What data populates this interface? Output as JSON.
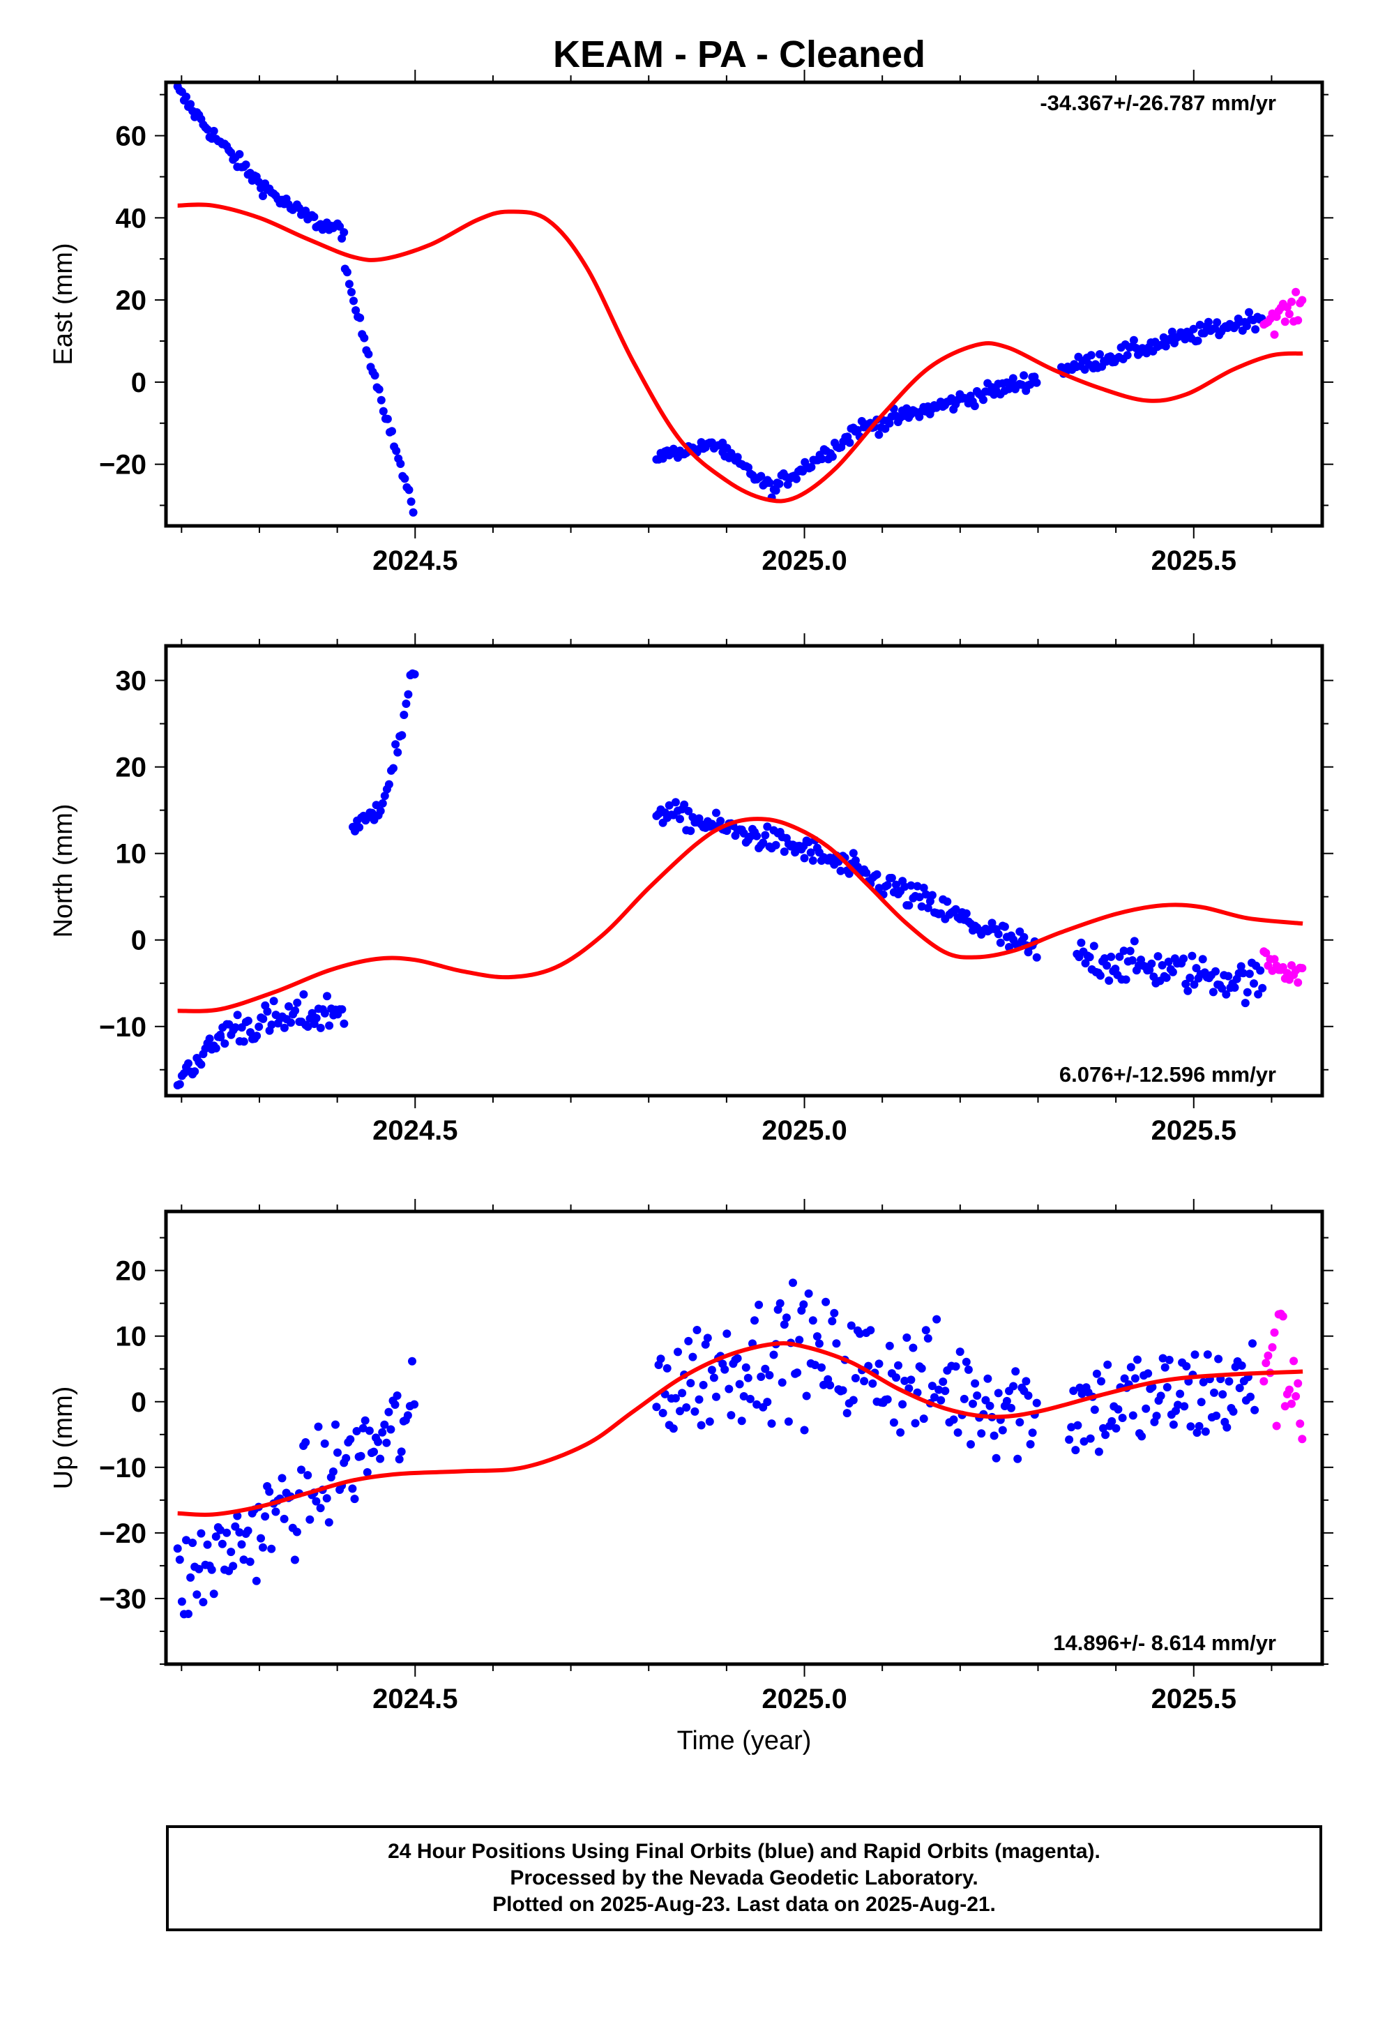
{
  "title": "KEAM  - PA - Cleaned",
  "footer": {
    "lines": [
      "24 Hour Positions Using Final Orbits (blue) and Rapid Orbits (magenta).",
      "Processed by the Nevada Geodetic Laboratory.",
      "Plotted on 2025-Aug-23. Last data on 2025-Aug-21."
    ]
  },
  "colors": {
    "final": "#0000ff",
    "rapid": "#ff00ff",
    "model": "#ff0000",
    "frame": "#000000"
  },
  "chart_data": [
    {
      "type": "scatter",
      "name": "east",
      "ylabel": "East (mm)",
      "xlabel": "",
      "rate_text": "-34.367+/-26.787 mm/yr",
      "rate_position": "top-right",
      "xlim": [
        2024.18,
        2025.665
      ],
      "ylim": [
        -35,
        73
      ],
      "xticks": [
        2024.5,
        2025.0,
        2025.5
      ],
      "xticklabels": [
        "2024.5",
        "2025.0",
        "2025.5"
      ],
      "yticks": [
        -20,
        0,
        20,
        40,
        60
      ],
      "yticklabels": [
        "−20",
        "0",
        "20",
        "40",
        "60"
      ],
      "grid": false,
      "series": [
        {
          "role": "final",
          "segments": [
            {
              "x0": 2024.195,
              "x1": 2024.41,
              "y0": 71,
              "y1": 37,
              "shape": "decay",
              "noise": 1.4
            },
            {
              "x0": 2024.41,
              "x1": 2024.5,
              "y0": 27,
              "y1": -33,
              "shape": "linear",
              "noise": 1.0
            },
            {
              "x0": 2024.81,
              "x1": 2024.895,
              "y0": -18,
              "y1": -15,
              "shape": "linear",
              "noise": 1.0
            },
            {
              "x0": 2024.895,
              "x1": 2024.965,
              "y0": -17,
              "y1": -27,
              "shape": "linear",
              "noise": 1.2
            },
            {
              "x0": 2024.965,
              "x1": 2025.06,
              "y0": -25,
              "y1": -13,
              "shape": "linear",
              "noise": 1.4
            },
            {
              "x0": 2025.06,
              "x1": 2025.3,
              "y0": -12,
              "y1": 1,
              "shape": "linear",
              "noise": 1.5
            },
            {
              "x0": 2025.33,
              "x1": 2025.59,
              "y0": 3,
              "y1": 16,
              "shape": "linear",
              "noise": 1.5
            }
          ]
        },
        {
          "role": "rapid",
          "segments": [
            {
              "x0": 2025.59,
              "x1": 2025.64,
              "y0": 15,
              "y1": 18,
              "shape": "linear",
              "noise": 2.5
            }
          ]
        },
        {
          "role": "model",
          "points": [
            [
              2024.195,
              43
            ],
            [
              2024.24,
              43
            ],
            [
              2024.3,
              40
            ],
            [
              2024.36,
              35
            ],
            [
              2024.42,
              30.5
            ],
            [
              2024.46,
              30
            ],
            [
              2024.52,
              33.5
            ],
            [
              2024.58,
              39.5
            ],
            [
              2024.62,
              41.5
            ],
            [
              2024.67,
              39.5
            ],
            [
              2024.72,
              28
            ],
            [
              2024.78,
              5
            ],
            [
              2024.84,
              -14
            ],
            [
              2024.9,
              -24
            ],
            [
              2024.95,
              -28.5
            ],
            [
              2024.99,
              -28
            ],
            [
              2025.04,
              -21
            ],
            [
              2025.1,
              -8
            ],
            [
              2025.16,
              3.5
            ],
            [
              2025.22,
              9
            ],
            [
              2025.26,
              8.5
            ],
            [
              2025.32,
              3
            ],
            [
              2025.38,
              -1.5
            ],
            [
              2025.44,
              -4.5
            ],
            [
              2025.49,
              -3
            ],
            [
              2025.55,
              3
            ],
            [
              2025.6,
              6.5
            ],
            [
              2025.64,
              7
            ]
          ]
        }
      ]
    },
    {
      "type": "scatter",
      "name": "north",
      "ylabel": "North (mm)",
      "xlabel": "",
      "rate_text": "6.076+/-12.596 mm/yr",
      "rate_position": "bottom-right",
      "xlim": [
        2024.18,
        2025.665
      ],
      "ylim": [
        -18,
        34
      ],
      "xticks": [
        2024.5,
        2025.0,
        2025.5
      ],
      "xticklabels": [
        "2024.5",
        "2025.0",
        "2025.5"
      ],
      "yticks": [
        -10,
        0,
        10,
        20,
        30
      ],
      "yticklabels": [
        "−10",
        "0",
        "10",
        "20",
        "30"
      ],
      "grid": false,
      "series": [
        {
          "role": "final",
          "segments": [
            {
              "x0": 2024.195,
              "x1": 2024.25,
              "y0": -16,
              "y1": -11.5,
              "shape": "linear",
              "noise": 1.0
            },
            {
              "x0": 2024.25,
              "x1": 2024.41,
              "y0": -10.5,
              "y1": -8,
              "shape": "linear",
              "noise": 1.6
            },
            {
              "x0": 2024.42,
              "x1": 2024.5,
              "y0": 13,
              "y1": 32,
              "shape": "growth",
              "noise": 1.2
            },
            {
              "x0": 2024.81,
              "x1": 2025.0,
              "y0": 15,
              "y1": 10.5,
              "shape": "linear",
              "noise": 1.0
            },
            {
              "x0": 2025.0,
              "x1": 2025.3,
              "y0": 10.5,
              "y1": -1.5,
              "shape": "linear",
              "noise": 1.2
            },
            {
              "x0": 2025.35,
              "x1": 2025.59,
              "y0": -2,
              "y1": -5,
              "shape": "linear",
              "noise": 1.6
            }
          ]
        },
        {
          "role": "rapid",
          "segments": [
            {
              "x0": 2025.59,
              "x1": 2025.64,
              "y0": -2,
              "y1": -4,
              "shape": "linear",
              "noise": 1.3
            }
          ]
        },
        {
          "role": "model",
          "points": [
            [
              2024.195,
              -8.2
            ],
            [
              2024.25,
              -8
            ],
            [
              2024.32,
              -6
            ],
            [
              2024.39,
              -3.5
            ],
            [
              2024.45,
              -2.2
            ],
            [
              2024.5,
              -2.3
            ],
            [
              2024.56,
              -3.6
            ],
            [
              2024.62,
              -4.3
            ],
            [
              2024.68,
              -3.2
            ],
            [
              2024.74,
              0.5
            ],
            [
              2024.8,
              6
            ],
            [
              2024.86,
              11
            ],
            [
              2024.9,
              13.3
            ],
            [
              2024.94,
              14
            ],
            [
              2024.98,
              13.3
            ],
            [
              2025.03,
              10.8
            ],
            [
              2025.08,
              6.5
            ],
            [
              2025.13,
              2
            ],
            [
              2025.18,
              -1.4
            ],
            [
              2025.22,
              -2
            ],
            [
              2025.27,
              -1.2
            ],
            [
              2025.33,
              0.9
            ],
            [
              2025.4,
              3
            ],
            [
              2025.46,
              4
            ],
            [
              2025.51,
              3.8
            ],
            [
              2025.57,
              2.5
            ],
            [
              2025.64,
              1.9
            ]
          ]
        }
      ]
    },
    {
      "type": "scatter",
      "name": "up",
      "ylabel": "Up (mm)",
      "xlabel": "Time (year)",
      "rate_text": "14.896+/- 8.614 mm/yr",
      "rate_position": "bottom-right",
      "xlim": [
        2024.18,
        2025.665
      ],
      "ylim": [
        -40,
        29
      ],
      "xticks": [
        2024.5,
        2025.0,
        2025.5
      ],
      "xticklabels": [
        "2024.5",
        "2025.0",
        "2025.5"
      ],
      "yticks": [
        -30,
        -20,
        -10,
        0,
        10,
        20
      ],
      "yticklabels": [
        "−30",
        "−20",
        "−10",
        "0",
        "10",
        "20"
      ],
      "grid": false,
      "series": [
        {
          "role": "final",
          "segments": [
            {
              "x0": 2024.195,
              "x1": 2024.5,
              "y0": -28,
              "y1": -2,
              "shape": "linear",
              "noise": 5.5
            },
            {
              "x0": 2024.81,
              "x1": 2025.0,
              "y0": 2,
              "y1": 9,
              "shape": "linear",
              "noise": 6.5
            },
            {
              "x0": 2025.0,
              "x1": 2025.3,
              "y0": 7,
              "y1": -1,
              "shape": "linear",
              "noise": 6.5
            },
            {
              "x0": 2025.34,
              "x1": 2025.58,
              "y0": -1,
              "y1": 2,
              "shape": "linear",
              "noise": 6.0
            }
          ]
        },
        {
          "role": "rapid",
          "segments": [
            {
              "x0": 2025.59,
              "x1": 2025.64,
              "y0": 8,
              "y1": 2,
              "shape": "linear",
              "noise": 7.0
            }
          ]
        },
        {
          "role": "model",
          "points": [
            [
              2024.195,
              -17
            ],
            [
              2024.24,
              -17.2
            ],
            [
              2024.3,
              -16
            ],
            [
              2024.36,
              -14
            ],
            [
              2024.42,
              -12
            ],
            [
              2024.48,
              -11
            ],
            [
              2024.56,
              -10.6
            ],
            [
              2024.64,
              -10
            ],
            [
              2024.72,
              -6.5
            ],
            [
              2024.78,
              -1.5
            ],
            [
              2024.84,
              3.5
            ],
            [
              2024.9,
              7
            ],
            [
              2024.96,
              8.8
            ],
            [
              2025.0,
              8.4
            ],
            [
              2025.06,
              6
            ],
            [
              2025.12,
              2
            ],
            [
              2025.18,
              -1
            ],
            [
              2025.24,
              -2.3
            ],
            [
              2025.3,
              -1.5
            ],
            [
              2025.38,
              1
            ],
            [
              2025.46,
              3.2
            ],
            [
              2025.54,
              4.1
            ],
            [
              2025.64,
              4.6
            ]
          ]
        }
      ]
    }
  ]
}
